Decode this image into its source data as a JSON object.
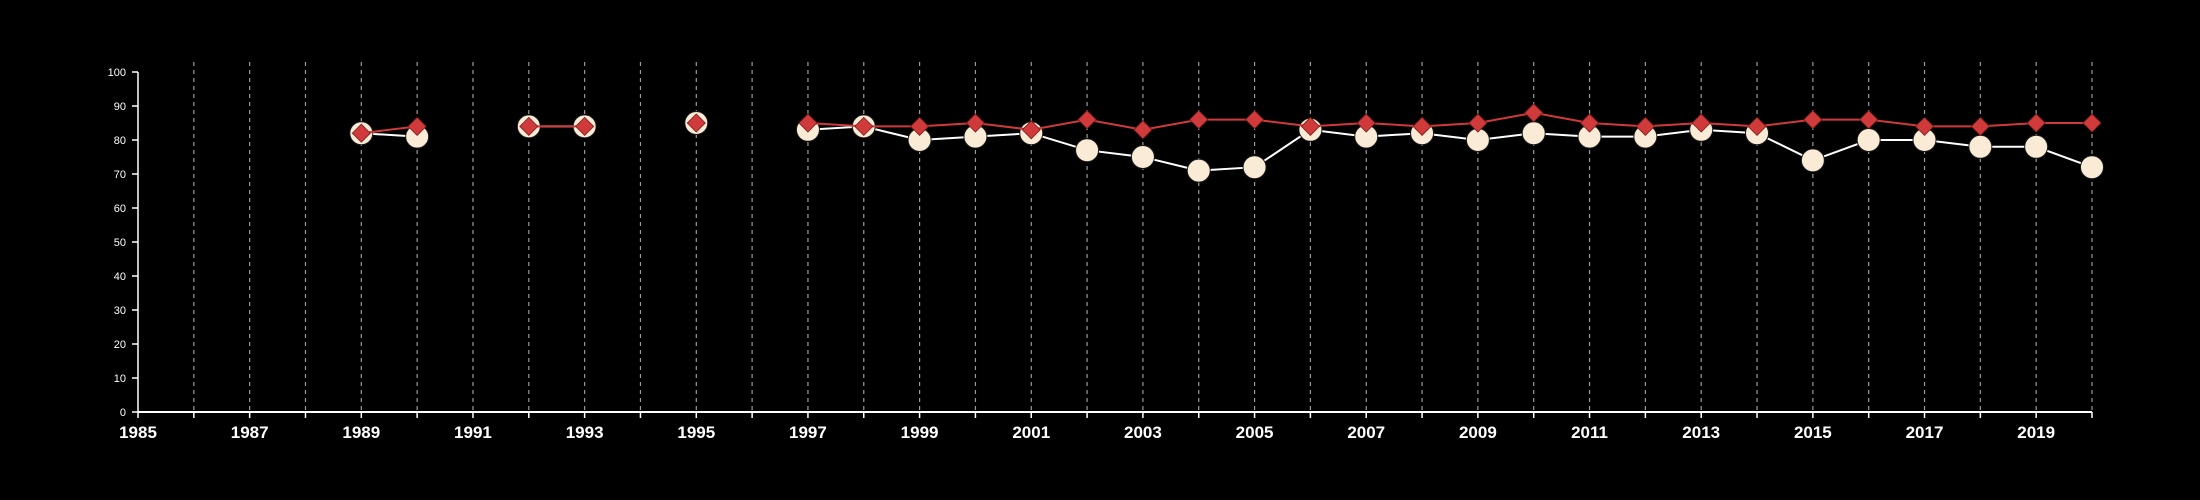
{
  "chart_data": {
    "type": "line",
    "title": "",
    "xlabel": "",
    "ylabel": "",
    "xlim": [
      1985,
      2020
    ],
    "ylim": [
      0,
      100
    ],
    "x_ticks": [
      "1985",
      "1987",
      "1989",
      "1991",
      "1993",
      "1995",
      "1997",
      "1999",
      "2001",
      "2003",
      "2005",
      "2007",
      "2009",
      "2011",
      "2013",
      "2015",
      "2017",
      "2019"
    ],
    "y_ticks": [
      "0",
      "10",
      "20",
      "30",
      "40",
      "50",
      "60",
      "70",
      "80",
      "90",
      "100"
    ],
    "grid": "vertical dashed lines at every year",
    "legend": "none",
    "series": [
      {
        "marker": "circle",
        "color": "#faebd7",
        "x": [
          1989,
          1990,
          null,
          1992,
          1993,
          null,
          1995,
          null,
          1997,
          1998,
          1999,
          2000,
          2001,
          2002,
          2003,
          2004,
          2005,
          2006,
          2007,
          2008,
          2009,
          2010,
          2011,
          2012,
          2013,
          2014,
          2015,
          2016,
          2017,
          2018,
          2019,
          2020
        ],
        "y": [
          82,
          81,
          null,
          84,
          84,
          null,
          85,
          null,
          83,
          84,
          80,
          81,
          82,
          77,
          75,
          71,
          72,
          83,
          81,
          82,
          80,
          82,
          81,
          81,
          83,
          82,
          74,
          80,
          80,
          78,
          78,
          72
        ]
      },
      {
        "marker": "diamond",
        "color": "#d13a3a",
        "x": [
          1989,
          1990,
          null,
          1992,
          1993,
          null,
          1995,
          null,
          1997,
          1998,
          1999,
          2000,
          2001,
          2002,
          2003,
          2004,
          2005,
          2006,
          2007,
          2008,
          2009,
          2010,
          2011,
          2012,
          2013,
          2014,
          2015,
          2016,
          2017,
          2018,
          2019,
          2020
        ],
        "y": [
          82,
          84,
          null,
          84,
          84,
          null,
          85,
          null,
          85,
          84,
          84,
          85,
          83,
          86,
          83,
          86,
          86,
          84,
          85,
          84,
          85,
          88,
          85,
          84,
          85,
          84,
          86,
          86,
          84,
          84,
          85,
          85
        ]
      }
    ]
  }
}
